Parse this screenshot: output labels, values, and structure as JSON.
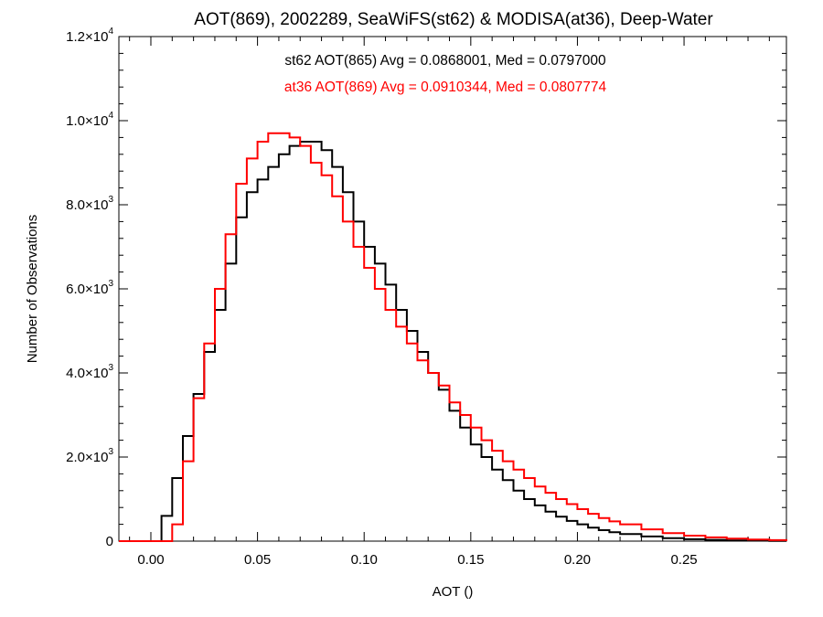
{
  "chart_data": {
    "type": "line",
    "title": "AOT(869), 2002289, SeaWiFS(st62) & MODISA(at36), Deep-Water",
    "xlabel": "AOT ()",
    "ylabel": "Number of Observations",
    "xlim": [
      -0.015,
      0.298
    ],
    "ylim": [
      0,
      12000
    ],
    "grid": false,
    "x_ticks": [
      {
        "value": 0.0,
        "label": "0.00"
      },
      {
        "value": 0.05,
        "label": "0.05"
      },
      {
        "value": 0.1,
        "label": "0.10"
      },
      {
        "value": 0.15,
        "label": "0.15"
      },
      {
        "value": 0.2,
        "label": "0.20"
      },
      {
        "value": 0.25,
        "label": "0.25"
      }
    ],
    "y_ticks": [
      {
        "value": 0,
        "label": "0",
        "exp": ""
      },
      {
        "value": 2000,
        "label": "2.0×10",
        "exp": "3"
      },
      {
        "value": 4000,
        "label": "4.0×10",
        "exp": "3"
      },
      {
        "value": 6000,
        "label": "6.0×10",
        "exp": "3"
      },
      {
        "value": 8000,
        "label": "8.0×10",
        "exp": "3"
      },
      {
        "value": 10000,
        "label": "1.0×10",
        "exp": "4"
      },
      {
        "value": 12000,
        "label": "1.2×10",
        "exp": "4"
      }
    ],
    "annotations": [
      {
        "text": "st62 AOT(865) Avg = 0.0868001, Med = 0.0797000",
        "color": "#000000"
      },
      {
        "text": "at36 AOT(869) Avg = 0.0910344, Med = 0.0807774",
        "color": "#ff0000"
      }
    ],
    "series": [
      {
        "color": "#000000",
        "x": [
          0.0,
          0.005,
          0.01,
          0.015,
          0.02,
          0.025,
          0.03,
          0.035,
          0.04,
          0.045,
          0.05,
          0.055,
          0.06,
          0.065,
          0.07,
          0.075,
          0.08,
          0.085,
          0.09,
          0.095,
          0.1,
          0.105,
          0.11,
          0.115,
          0.12,
          0.125,
          0.13,
          0.135,
          0.14,
          0.145,
          0.15,
          0.155,
          0.16,
          0.165,
          0.17,
          0.175,
          0.18,
          0.185,
          0.19,
          0.195,
          0.2,
          0.205,
          0.21,
          0.215,
          0.22,
          0.23,
          0.24,
          0.25,
          0.26,
          0.27,
          0.28,
          0.29,
          0.298
        ],
        "y": [
          0,
          600,
          1500,
          2500,
          3500,
          4500,
          5500,
          6600,
          7700,
          8300,
          8600,
          8900,
          9200,
          9400,
          9500,
          9500,
          9300,
          8900,
          8300,
          7600,
          7000,
          6600,
          6100,
          5500,
          5000,
          4500,
          4000,
          3600,
          3100,
          2700,
          2300,
          2000,
          1700,
          1450,
          1200,
          1000,
          850,
          700,
          580,
          480,
          400,
          320,
          260,
          210,
          170,
          110,
          70,
          45,
          30,
          18,
          10,
          5,
          0
        ]
      },
      {
        "color": "#ff0000",
        "x": [
          0.005,
          0.01,
          0.015,
          0.02,
          0.025,
          0.03,
          0.035,
          0.04,
          0.045,
          0.05,
          0.055,
          0.06,
          0.065,
          0.07,
          0.075,
          0.08,
          0.085,
          0.09,
          0.095,
          0.1,
          0.105,
          0.11,
          0.115,
          0.12,
          0.125,
          0.13,
          0.135,
          0.14,
          0.145,
          0.15,
          0.155,
          0.16,
          0.165,
          0.17,
          0.175,
          0.18,
          0.185,
          0.19,
          0.195,
          0.2,
          0.205,
          0.21,
          0.215,
          0.22,
          0.23,
          0.24,
          0.25,
          0.26,
          0.27,
          0.28,
          0.29,
          0.298
        ],
        "y": [
          0,
          400,
          1900,
          3400,
          4700,
          6000,
          7300,
          8500,
          9100,
          9500,
          9700,
          9700,
          9600,
          9400,
          9000,
          8700,
          8200,
          7600,
          7000,
          6500,
          6000,
          5500,
          5100,
          4700,
          4300,
          4000,
          3700,
          3300,
          3000,
          2700,
          2400,
          2150,
          1900,
          1700,
          1500,
          1300,
          1150,
          1000,
          880,
          760,
          650,
          550,
          470,
          400,
          280,
          190,
          130,
          90,
          60,
          40,
          25,
          0
        ]
      }
    ]
  }
}
